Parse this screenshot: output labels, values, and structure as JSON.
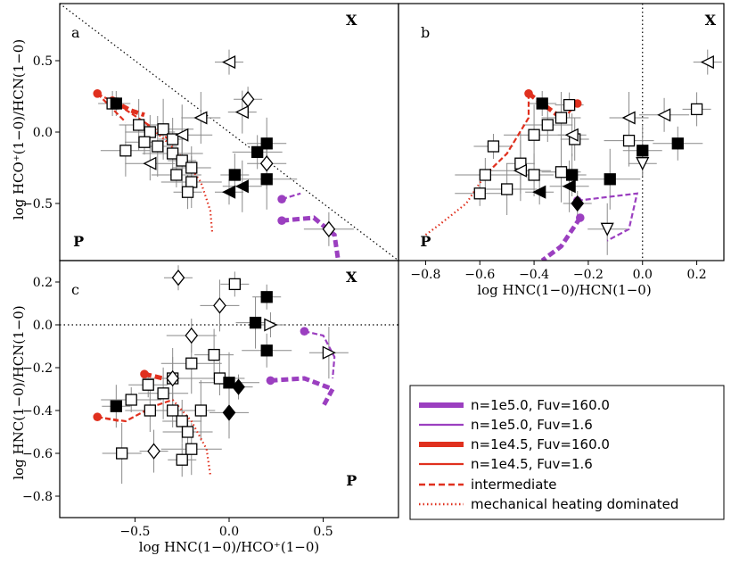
{
  "chart_data": [
    {
      "type": "scatter",
      "panel_label": "a",
      "xlabel": "",
      "ylabel": "log HCO⁺(1−0)/HCN(1−0)",
      "xlim": [
        -0.9,
        0.9
      ],
      "ylim": [
        -0.9,
        0.9
      ],
      "yticks": [
        0.5,
        0.0,
        -0.5
      ],
      "region_labels": [
        {
          "text": "X",
          "x": 0.65,
          "y": 0.75
        },
        {
          "text": "P",
          "x": -0.8,
          "y": -0.8
        }
      ],
      "guide_lines": [
        {
          "style": "dotted",
          "points": [
            [
              -0.9,
              0.9
            ],
            [
              0.9,
              -0.9
            ]
          ]
        }
      ],
      "series": [
        {
          "marker": "square-open",
          "points": [
            [
              -0.62,
              0.2
            ],
            [
              -0.48,
              0.05
            ],
            [
              -0.42,
              0.0
            ],
            [
              -0.35,
              0.02
            ],
            [
              -0.3,
              -0.05
            ],
            [
              -0.45,
              -0.07
            ],
            [
              -0.55,
              -0.13
            ],
            [
              -0.3,
              -0.15
            ],
            [
              -0.25,
              -0.2
            ],
            [
              -0.2,
              -0.25
            ],
            [
              -0.28,
              -0.3
            ],
            [
              -0.2,
              -0.35
            ],
            [
              -0.22,
              -0.42
            ],
            [
              -0.38,
              -0.1
            ]
          ]
        },
        {
          "marker": "square-filled",
          "points": [
            [
              -0.6,
              0.2
            ],
            [
              0.2,
              -0.08
            ],
            [
              0.15,
              -0.14
            ],
            [
              0.2,
              -0.33
            ],
            [
              0.03,
              -0.3
            ]
          ]
        },
        {
          "marker": "triangle-left-open",
          "points": [
            [
              0.0,
              0.49
            ],
            [
              -0.15,
              0.1
            ],
            [
              -0.42,
              -0.22
            ],
            [
              -0.25,
              -0.02
            ],
            [
              0.07,
              0.14
            ]
          ]
        },
        {
          "marker": "triangle-left-filled",
          "points": [
            [
              0.0,
              -0.42
            ],
            [
              0.07,
              -0.38
            ]
          ]
        },
        {
          "marker": "diamond-open",
          "points": [
            [
              0.1,
              0.23
            ],
            [
              0.2,
              -0.22
            ],
            [
              0.53,
              -0.68
            ]
          ]
        }
      ],
      "models": [
        {
          "legend": "n=1e5.0, Fuv=160.0",
          "points": [
            [
              0.28,
              -0.62
            ],
            [
              0.45,
              -0.6
            ],
            [
              0.56,
              -0.72
            ],
            [
              0.58,
              -0.9
            ]
          ]
        },
        {
          "legend": "n=1e5.0, Fuv=1.6",
          "points": [
            [
              0.28,
              -0.47
            ],
            [
              0.38,
              -0.43
            ]
          ]
        },
        {
          "legend": "n=1e4.5, Fuv=160.0",
          "points": [
            [
              -0.62,
              0.22
            ],
            [
              -0.52,
              0.15
            ],
            [
              -0.45,
              0.12
            ]
          ]
        },
        {
          "legend": "n=1e4.5, Fuv=1.6",
          "points": [
            [
              -0.7,
              0.27
            ],
            [
              -0.55,
              0.07
            ]
          ]
        },
        {
          "legend": "intermediate",
          "points": [
            [
              -0.7,
              0.27
            ],
            [
              -0.6,
              0.2
            ],
            [
              -0.45,
              0.07
            ],
            [
              -0.32,
              -0.05
            ]
          ]
        },
        {
          "legend": "mechanical heating dominated",
          "points": [
            [
              -0.45,
              0.07
            ],
            [
              -0.32,
              -0.08
            ],
            [
              -0.22,
              -0.22
            ],
            [
              -0.15,
              -0.35
            ],
            [
              -0.1,
              -0.55
            ],
            [
              -0.09,
              -0.7
            ]
          ]
        }
      ]
    },
    {
      "type": "scatter",
      "panel_label": "b",
      "xlabel": "log HNC(1−0)/HCN(1−0)",
      "ylabel": "",
      "xlim": [
        -0.9,
        0.3
      ],
      "ylim": [
        -0.9,
        0.9
      ],
      "xticks": [
        -0.8,
        -0.6,
        -0.4,
        -0.2,
        0.0,
        0.2
      ],
      "xticklabels": [
        "−0.8",
        "−0.6",
        "−0.4",
        "−0.2",
        "0.0",
        "0.2"
      ],
      "region_labels": [
        {
          "text": "X",
          "x": 0.25,
          "y": 0.75
        },
        {
          "text": "P",
          "x": -0.8,
          "y": -0.8
        }
      ],
      "guide_lines": [
        {
          "style": "dotted",
          "points": [
            [
              0.0,
              0.9
            ],
            [
              0.0,
              -0.9
            ]
          ]
        }
      ],
      "series": [
        {
          "marker": "square-open",
          "points": [
            [
              -0.27,
              0.19
            ],
            [
              -0.3,
              0.1
            ],
            [
              -0.35,
              0.05
            ],
            [
              -0.4,
              -0.02
            ],
            [
              -0.25,
              -0.05
            ],
            [
              -0.55,
              -0.1
            ],
            [
              -0.05,
              -0.06
            ],
            [
              -0.58,
              -0.3
            ],
            [
              -0.45,
              -0.22
            ],
            [
              -0.4,
              -0.3
            ],
            [
              -0.6,
              -0.43
            ],
            [
              -0.5,
              -0.4
            ],
            [
              0.2,
              0.16
            ],
            [
              -0.3,
              -0.28
            ]
          ]
        },
        {
          "marker": "square-filled",
          "points": [
            [
              -0.37,
              0.2
            ],
            [
              0.0,
              -0.13
            ],
            [
              0.13,
              -0.08
            ],
            [
              -0.12,
              -0.33
            ],
            [
              -0.26,
              -0.3
            ]
          ]
        },
        {
          "marker": "triangle-left-open",
          "points": [
            [
              0.24,
              0.49
            ],
            [
              -0.05,
              0.1
            ],
            [
              0.08,
              0.12
            ],
            [
              -0.45,
              -0.27
            ],
            [
              -0.26,
              -0.02
            ]
          ]
        },
        {
          "marker": "triangle-left-filled",
          "points": [
            [
              -0.38,
              -0.42
            ],
            [
              -0.27,
              -0.38
            ]
          ]
        },
        {
          "marker": "triangle-down-open",
          "points": [
            [
              0.0,
              -0.22
            ],
            [
              -0.13,
              -0.68
            ]
          ]
        },
        {
          "marker": "diamond-filled",
          "points": [
            [
              -0.24,
              -0.5
            ]
          ]
        }
      ],
      "models": [
        {
          "legend": "n=1e5.0, Fuv=160.0",
          "points": [
            [
              -0.23,
              -0.6
            ],
            [
              -0.3,
              -0.8
            ],
            [
              -0.37,
              -0.9
            ]
          ]
        },
        {
          "legend": "n=1e5.0, Fuv=1.6",
          "points": [
            [
              -0.24,
              -0.48
            ],
            [
              -0.02,
              -0.43
            ],
            [
              -0.05,
              -0.68
            ],
            [
              -0.13,
              -0.76
            ]
          ]
        },
        {
          "legend": "n=1e4.5, Fuv=160.0",
          "points": [
            [
              -0.42,
              0.27
            ],
            [
              -0.3,
              0.1
            ]
          ]
        },
        {
          "legend": "n=1e4.5, Fuv=1.6",
          "points": [
            [
              -0.24,
              0.2
            ],
            [
              -0.3,
              0.08
            ]
          ]
        },
        {
          "legend": "intermediate",
          "points": [
            [
              -0.42,
              0.27
            ],
            [
              -0.42,
              0.1
            ],
            [
              -0.5,
              -0.15
            ],
            [
              -0.58,
              -0.3
            ]
          ]
        },
        {
          "legend": "mechanical heating dominated",
          "points": [
            [
              -0.58,
              -0.3
            ],
            [
              -0.65,
              -0.5
            ],
            [
              -0.75,
              -0.65
            ],
            [
              -0.8,
              -0.72
            ]
          ]
        }
      ]
    },
    {
      "type": "scatter",
      "panel_label": "c",
      "xlabel": "log HNC(1−0)/HCO⁺(1−0)",
      "ylabel": "log HNC(1−0)/HCN(1−0)",
      "xlim": [
        -0.9,
        0.9
      ],
      "ylim": [
        -0.9,
        0.3
      ],
      "xticks": [
        -0.5,
        0.0,
        0.5
      ],
      "xticklabels": [
        "−0.5",
        "0.0",
        "0.5"
      ],
      "yticks": [
        0.2,
        0.0,
        -0.2,
        -0.4,
        -0.6,
        -0.8
      ],
      "yticklabels": [
        "0.2",
        "0.0",
        "−0.2",
        "−0.4",
        "−0.6",
        "−0.8"
      ],
      "region_labels": [
        {
          "text": "X",
          "x": 0.65,
          "y": 0.2
        },
        {
          "text": "P",
          "x": 0.65,
          "y": -0.75
        }
      ],
      "guide_lines": [
        {
          "style": "dotted",
          "points": [
            [
              -0.9,
              0.0
            ],
            [
              0.9,
              0.0
            ]
          ]
        }
      ],
      "series": [
        {
          "marker": "square-open",
          "points": [
            [
              0.03,
              0.19
            ],
            [
              -0.08,
              -0.14
            ],
            [
              -0.05,
              -0.25
            ],
            [
              -0.2,
              -0.18
            ],
            [
              -0.3,
              -0.25
            ],
            [
              -0.43,
              -0.28
            ],
            [
              -0.35,
              -0.32
            ],
            [
              -0.3,
              -0.4
            ],
            [
              -0.15,
              -0.4
            ],
            [
              -0.25,
              -0.45
            ],
            [
              -0.22,
              -0.5
            ],
            [
              -0.2,
              -0.58
            ],
            [
              -0.25,
              -0.63
            ],
            [
              -0.57,
              -0.6
            ],
            [
              -0.42,
              -0.4
            ],
            [
              -0.52,
              -0.35
            ]
          ]
        },
        {
          "marker": "square-filled",
          "points": [
            [
              0.2,
              0.13
            ],
            [
              0.14,
              0.01
            ],
            [
              0.2,
              -0.12
            ],
            [
              0.0,
              -0.27
            ],
            [
              -0.6,
              -0.38
            ]
          ]
        },
        {
          "marker": "triangle-right-open",
          "points": [
            [
              0.22,
              0.0
            ],
            [
              0.53,
              -0.13
            ]
          ]
        },
        {
          "marker": "diamond-open",
          "points": [
            [
              -0.27,
              0.22
            ],
            [
              -0.05,
              0.09
            ],
            [
              -0.2,
              -0.05
            ],
            [
              -0.3,
              -0.25
            ],
            [
              -0.4,
              -0.59
            ]
          ]
        },
        {
          "marker": "diamond-filled",
          "points": [
            [
              0.05,
              -0.29
            ],
            [
              0.0,
              -0.41
            ]
          ]
        }
      ],
      "models": [
        {
          "legend": "n=1e5.0, Fuv=160.0",
          "points": [
            [
              0.22,
              -0.26
            ],
            [
              0.4,
              -0.25
            ],
            [
              0.55,
              -0.3
            ],
            [
              0.5,
              -0.38
            ]
          ]
        },
        {
          "legend": "n=1e5.0, Fuv=1.6",
          "points": [
            [
              0.4,
              -0.03
            ],
            [
              0.5,
              -0.05
            ],
            [
              0.56,
              -0.15
            ],
            [
              0.55,
              -0.25
            ]
          ]
        },
        {
          "legend": "n=1e4.5, Fuv=160.0",
          "points": [
            [
              -0.45,
              -0.23
            ],
            [
              -0.35,
              -0.25
            ]
          ]
        },
        {
          "legend": "n=1e4.5, Fuv=1.6",
          "points": [
            [
              -0.7,
              -0.43
            ],
            [
              -0.58,
              -0.45
            ]
          ]
        },
        {
          "legend": "intermediate",
          "points": [
            [
              -0.7,
              -0.43
            ],
            [
              -0.55,
              -0.45
            ],
            [
              -0.4,
              -0.38
            ],
            [
              -0.3,
              -0.35
            ]
          ]
        },
        {
          "legend": "mechanical heating dominated",
          "points": [
            [
              -0.3,
              -0.35
            ],
            [
              -0.2,
              -0.45
            ],
            [
              -0.12,
              -0.58
            ],
            [
              -0.1,
              -0.7
            ]
          ]
        }
      ]
    }
  ],
  "legend": {
    "placement": "bottom-right",
    "entries": [
      {
        "label": "n=1e5.0, Fuv=160.0",
        "color": "#9b3fc0",
        "style": "thick"
      },
      {
        "label": "n=1e5.0, Fuv=1.6",
        "color": "#9b3fc0",
        "style": "thin"
      },
      {
        "label": "n=1e4.5, Fuv=160.0",
        "color": "#e0301e",
        "style": "thick"
      },
      {
        "label": "n=1e4.5, Fuv=1.6",
        "color": "#e0301e",
        "style": "thin"
      },
      {
        "label": "intermediate",
        "color": "#e0301e",
        "style": "dashed"
      },
      {
        "label": "mechanical heating dominated",
        "color": "#e0301e",
        "style": "dotted"
      }
    ]
  },
  "colors": {
    "purple": "#9b3fc0",
    "red": "#e0301e",
    "errorbar": "#8a8a8a"
  }
}
